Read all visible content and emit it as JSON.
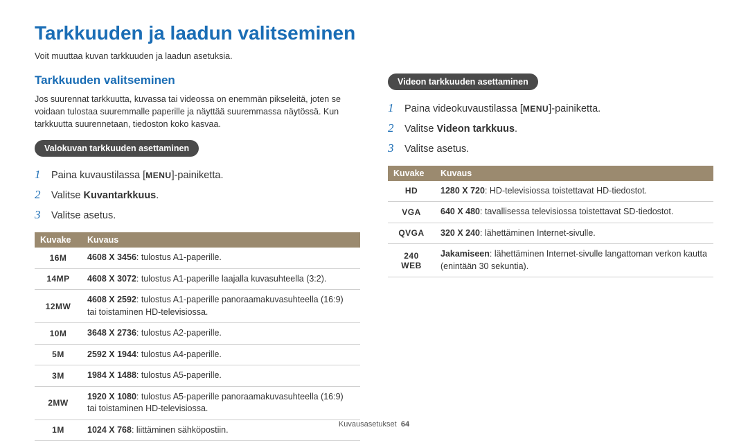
{
  "colors": {
    "accent": "#1a6db5",
    "pill_bg": "#4a4a4a",
    "pill_fg": "#ffffff",
    "table_header_bg": "#9b8a6f",
    "table_header_fg": "#ffffff",
    "row_border": "#cfcfcf",
    "body_text": "#333333",
    "background": "#ffffff"
  },
  "page": {
    "title": "Tarkkuuden ja laadun valitseminen",
    "intro": "Voit muuttaa kuvan tarkkuuden ja laadun asetuksia."
  },
  "section": {
    "title": "Tarkkuuden valitseminen",
    "desc": "Jos suurennat tarkkuutta, kuvassa tai videossa on enemmän pikseleitä, joten se voidaan tulostaa suuremmalle paperille ja näyttää suuremmassa näytössä. Kun tarkkuutta suurennetaan, tiedoston koko kasvaa."
  },
  "photo": {
    "pill": "Valokuvan tarkkuuden asettaminen",
    "steps": {
      "s1_pre": "Paina kuvaustilassa [",
      "s1_menu": "MENU",
      "s1_post": "]-painiketta.",
      "s2_pre": "Valitse ",
      "s2_bold": "Kuvantarkkuus",
      "s2_post": ".",
      "s3": "Valitse asetus."
    },
    "table": {
      "h1": "Kuvake",
      "h2": "Kuvaus",
      "rows": [
        {
          "icon": "16M",
          "bold": "4608 X 3456",
          "rest": ": tulostus A1-paperille."
        },
        {
          "icon": "14MP",
          "bold": "4608 X 3072",
          "rest": ": tulostus A1-paperille laajalla kuvasuhteella (3:2)."
        },
        {
          "icon": "12MW",
          "bold": "4608 X 2592",
          "rest": ": tulostus A1-paperille panoraamakuvasuhteella (16:9) tai toistaminen HD-televisiossa."
        },
        {
          "icon": "10M",
          "bold": "3648 X 2736",
          "rest": ": tulostus A2-paperille."
        },
        {
          "icon": "5M",
          "bold": "2592 X 1944",
          "rest": ": tulostus A4-paperille."
        },
        {
          "icon": "3M",
          "bold": "1984 X 1488",
          "rest": ": tulostus A5-paperille."
        },
        {
          "icon": "2MW",
          "bold": "1920 X 1080",
          "rest": ": tulostus A5-paperille panoraamakuvasuhteella (16:9) tai toistaminen HD-televisiossa."
        },
        {
          "icon": "1M",
          "bold": "1024 X 768",
          "rest": ": liittäminen sähköpostiin."
        }
      ]
    }
  },
  "video": {
    "pill": "Videon tarkkuuden asettaminen",
    "steps": {
      "s1_pre": "Paina videokuvaustilassa [",
      "s1_menu": "MENU",
      "s1_post": "]-painiketta.",
      "s2_pre": "Valitse ",
      "s2_bold": "Videon tarkkuus",
      "s2_post": ".",
      "s3": "Valitse asetus."
    },
    "table": {
      "h1": "Kuvake",
      "h2": "Kuvaus",
      "rows": [
        {
          "icon": "HD",
          "bold": "1280 X 720",
          "rest": ": HD-televisiossa toistettavat HD-tiedostot."
        },
        {
          "icon": "VGA",
          "bold": "640 X 480",
          "rest": ": tavallisessa televisiossa toistettavat SD-tiedostot."
        },
        {
          "icon": "QVGA",
          "bold": "320 X 240",
          "rest": ": lähettäminen Internet-sivulle."
        },
        {
          "icon": "240 WEB",
          "bold": "Jakamiseen",
          "rest": ": lähettäminen Internet-sivulle langattoman verkon kautta (enintään 30 sekuntia)."
        }
      ]
    }
  },
  "footer": {
    "label": "Kuvausasetukset",
    "page": "64"
  }
}
